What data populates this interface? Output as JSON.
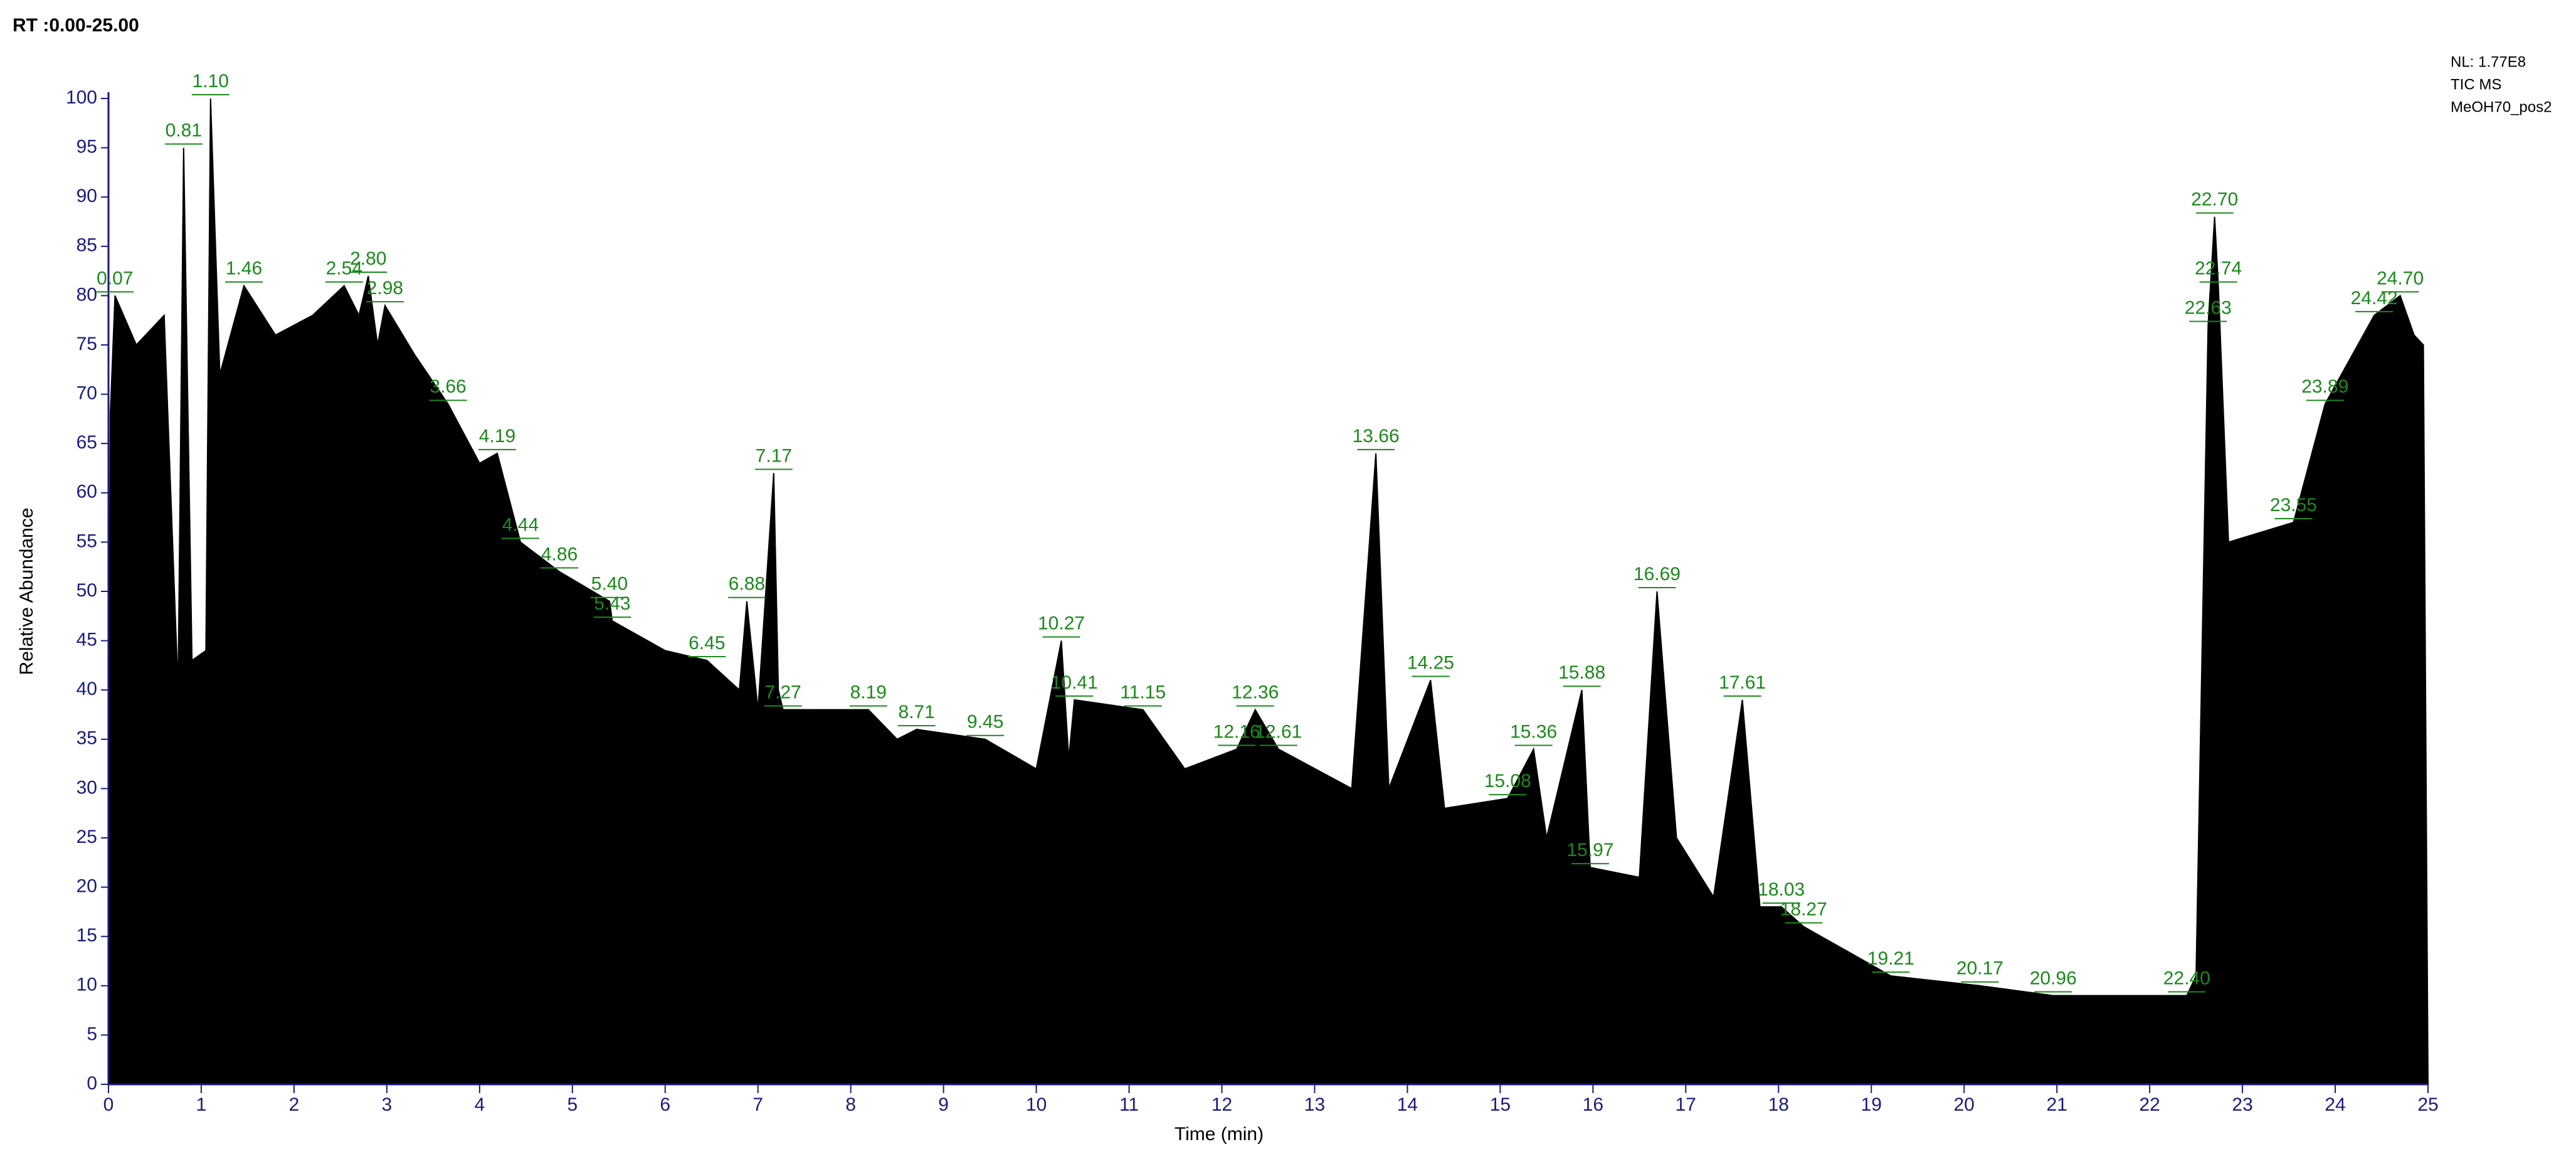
{
  "chart_data": {
    "type": "area",
    "header": "RT :0.00-25.00",
    "info": [
      "NL: 1.77E8",
      "TIC MS",
      "MeOH70_pos2"
    ],
    "x_label": "Time (min)",
    "y_label": "Relative Abundance",
    "xlim": [
      0,
      25
    ],
    "xticks": [
      0,
      1,
      2,
      3,
      4,
      5,
      6,
      7,
      8,
      9,
      10,
      11,
      12,
      13,
      14,
      15,
      16,
      17,
      18,
      19,
      20,
      21,
      22,
      23,
      24,
      25
    ],
    "ylim": [
      0,
      100
    ],
    "yticks": [
      0,
      5,
      10,
      15,
      20,
      25,
      30,
      35,
      40,
      45,
      50,
      55,
      60,
      65,
      70,
      75,
      80,
      85,
      90,
      95,
      100
    ],
    "color": "#000000",
    "label_color": "#1a8a1a",
    "axis_color": "#1a1a80",
    "x": [
      0,
      0.02,
      0.07,
      0.3,
      0.6,
      0.75,
      0.81,
      0.9,
      1.05,
      1.1,
      1.2,
      1.46,
      1.8,
      2.2,
      2.54,
      2.7,
      2.8,
      2.9,
      2.98,
      3.3,
      3.66,
      4.0,
      4.19,
      4.44,
      4.86,
      5.4,
      5.43,
      6.0,
      6.45,
      6.8,
      6.88,
      7.0,
      7.17,
      7.22,
      7.27,
      8.19,
      8.5,
      8.71,
      9.45,
      10.0,
      10.27,
      10.35,
      10.41,
      11.15,
      11.6,
      12.16,
      12.36,
      12.61,
      13.4,
      13.66,
      13.8,
      14.25,
      14.4,
      15.08,
      15.36,
      15.5,
      15.88,
      15.97,
      16.5,
      16.69,
      16.9,
      17.3,
      17.61,
      17.8,
      18.03,
      18.27,
      19.21,
      20.17,
      20.96,
      22.4,
      22.5,
      22.63,
      22.7,
      22.74,
      22.85,
      23.55,
      23.89,
      24.42,
      24.7,
      24.85,
      24.95,
      25
    ],
    "values": [
      0,
      68,
      80,
      75,
      78,
      40,
      95,
      43,
      44,
      100,
      72,
      81,
      76,
      78,
      81,
      78,
      82,
      75,
      79,
      74,
      69,
      63,
      64,
      55,
      52,
      49,
      47,
      44,
      43,
      40,
      49,
      38,
      62,
      40,
      38,
      38,
      35,
      36,
      35,
      32,
      45,
      33,
      39,
      38,
      32,
      34,
      38,
      34,
      30,
      64,
      30,
      41,
      28,
      29,
      34,
      25,
      40,
      22,
      21,
      50,
      25,
      19,
      39,
      18,
      18,
      16,
      11,
      10,
      9,
      9,
      11,
      77,
      88,
      81,
      55,
      57,
      69,
      78,
      80,
      76,
      75,
      0
    ],
    "peaks": {
      "x": [
        0.07,
        0.81,
        1.1,
        1.46,
        2.54,
        2.8,
        2.98,
        3.66,
        4.19,
        4.44,
        4.86,
        5.4,
        5.43,
        6.45,
        6.88,
        7.17,
        7.27,
        8.19,
        8.71,
        9.45,
        10.27,
        10.41,
        11.15,
        12.16,
        12.36,
        12.61,
        13.66,
        14.25,
        15.08,
        15.36,
        15.88,
        15.97,
        16.69,
        17.61,
        18.03,
        18.27,
        19.21,
        20.17,
        20.96,
        22.4,
        22.63,
        22.7,
        22.74,
        23.55,
        23.89,
        24.42,
        24.7
      ],
      "values": [
        80,
        95,
        100,
        81,
        81,
        82,
        79,
        69,
        64,
        55,
        52,
        49,
        47,
        43,
        49,
        62,
        38,
        38,
        36,
        35,
        45,
        39,
        38,
        34,
        38,
        34,
        64,
        41,
        29,
        34,
        40,
        22,
        50,
        39,
        18,
        16,
        11,
        10,
        9,
        9,
        77,
        88,
        81,
        57,
        69,
        78,
        80
      ],
      "labels": [
        "0.07",
        "0.81",
        "1.10",
        "1.46",
        "2.54",
        "2.80",
        "2.98",
        "3.66",
        "4.19",
        "4.44",
        "4.86",
        "5.40",
        "5.43",
        "6.45",
        "6.88",
        "7.17",
        "7.27",
        "8.19",
        "8.71",
        "9.45",
        "10.27",
        "10.41",
        "11.15",
        "12.16",
        "12.36",
        "12.61",
        "13.66",
        "14.25",
        "15.08",
        "15.36",
        "15.88",
        "15.97",
        "16.69",
        "17.61",
        "18.03",
        "18.27",
        "19.21",
        "20.17",
        "20.96",
        "22.40",
        "22.63",
        "22.70",
        "22.74",
        "23.55",
        "23.89",
        "24.42",
        "24.70"
      ]
    }
  }
}
